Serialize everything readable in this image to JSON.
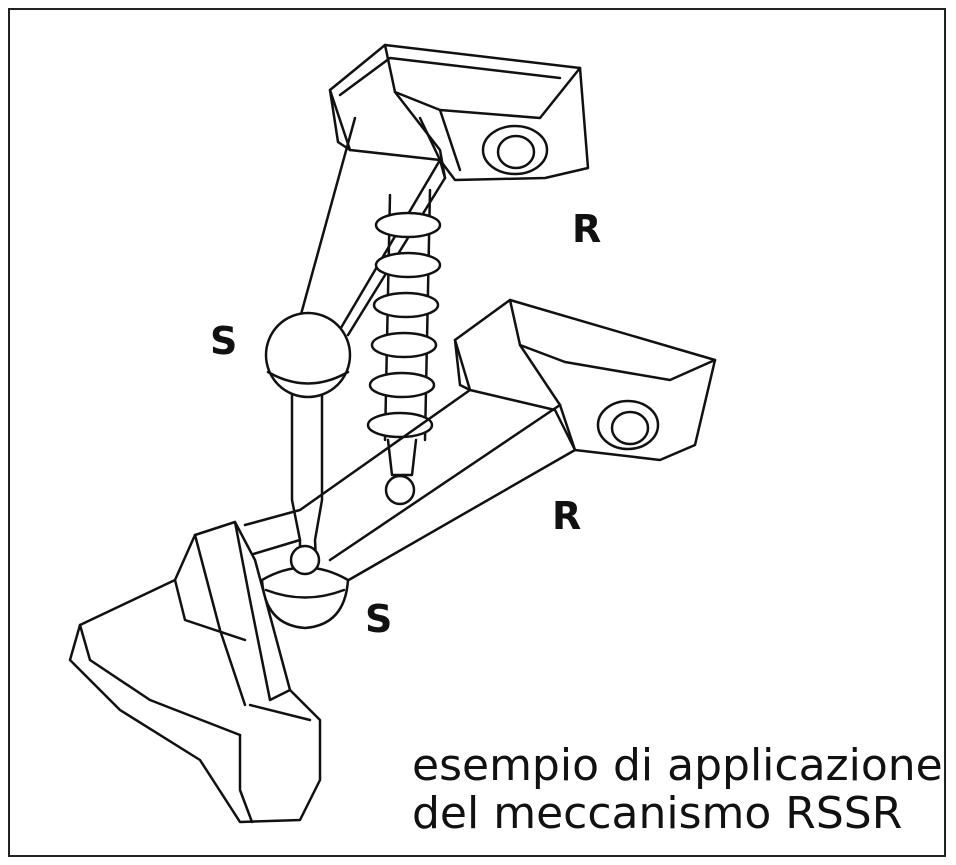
{
  "labels": {
    "r_upper": "R",
    "r_lower": "R",
    "s_upper": "S",
    "s_lower": "S"
  },
  "caption": {
    "line1": "esempio di applicazione",
    "line2": "del meccanismo RSSR"
  }
}
